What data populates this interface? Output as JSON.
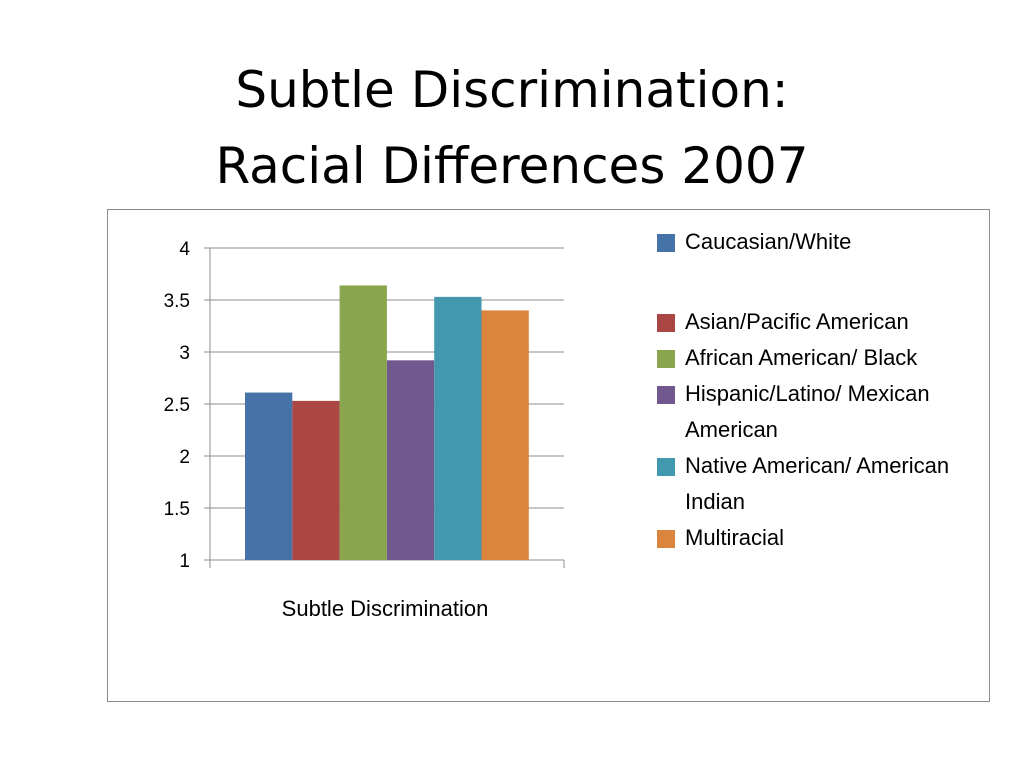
{
  "title": {
    "line1": "Subtle Discrimination:",
    "line2": "Racial Differences 2007"
  },
  "chart_data": {
    "type": "bar",
    "categories": [
      "Subtle Discrimination"
    ],
    "xlabel": "Subtle Discrimination",
    "ylim": [
      1,
      4
    ],
    "yticks": [
      "1",
      "1.5",
      "2",
      "2.5",
      "3",
      "3.5",
      "4"
    ],
    "grid": true,
    "legend_placement": "right",
    "series": [
      {
        "name": "Caucasian/White",
        "values": [
          2.61
        ],
        "color": "#4572A7"
      },
      {
        "name": "Asian/Pacific American",
        "values": [
          2.53
        ],
        "color": "#AA4643"
      },
      {
        "name": "African American/ Black",
        "values": [
          3.64
        ],
        "color": "#89A54E"
      },
      {
        "name": "Hispanic/Latino/ Mexican American",
        "values": [
          2.92
        ],
        "color": "#71588F"
      },
      {
        "name": "Native American/ American Indian",
        "values": [
          3.53
        ],
        "color": "#4198AF"
      },
      {
        "name": "Multiracial",
        "values": [
          3.4
        ],
        "color": "#DB843D"
      }
    ]
  }
}
